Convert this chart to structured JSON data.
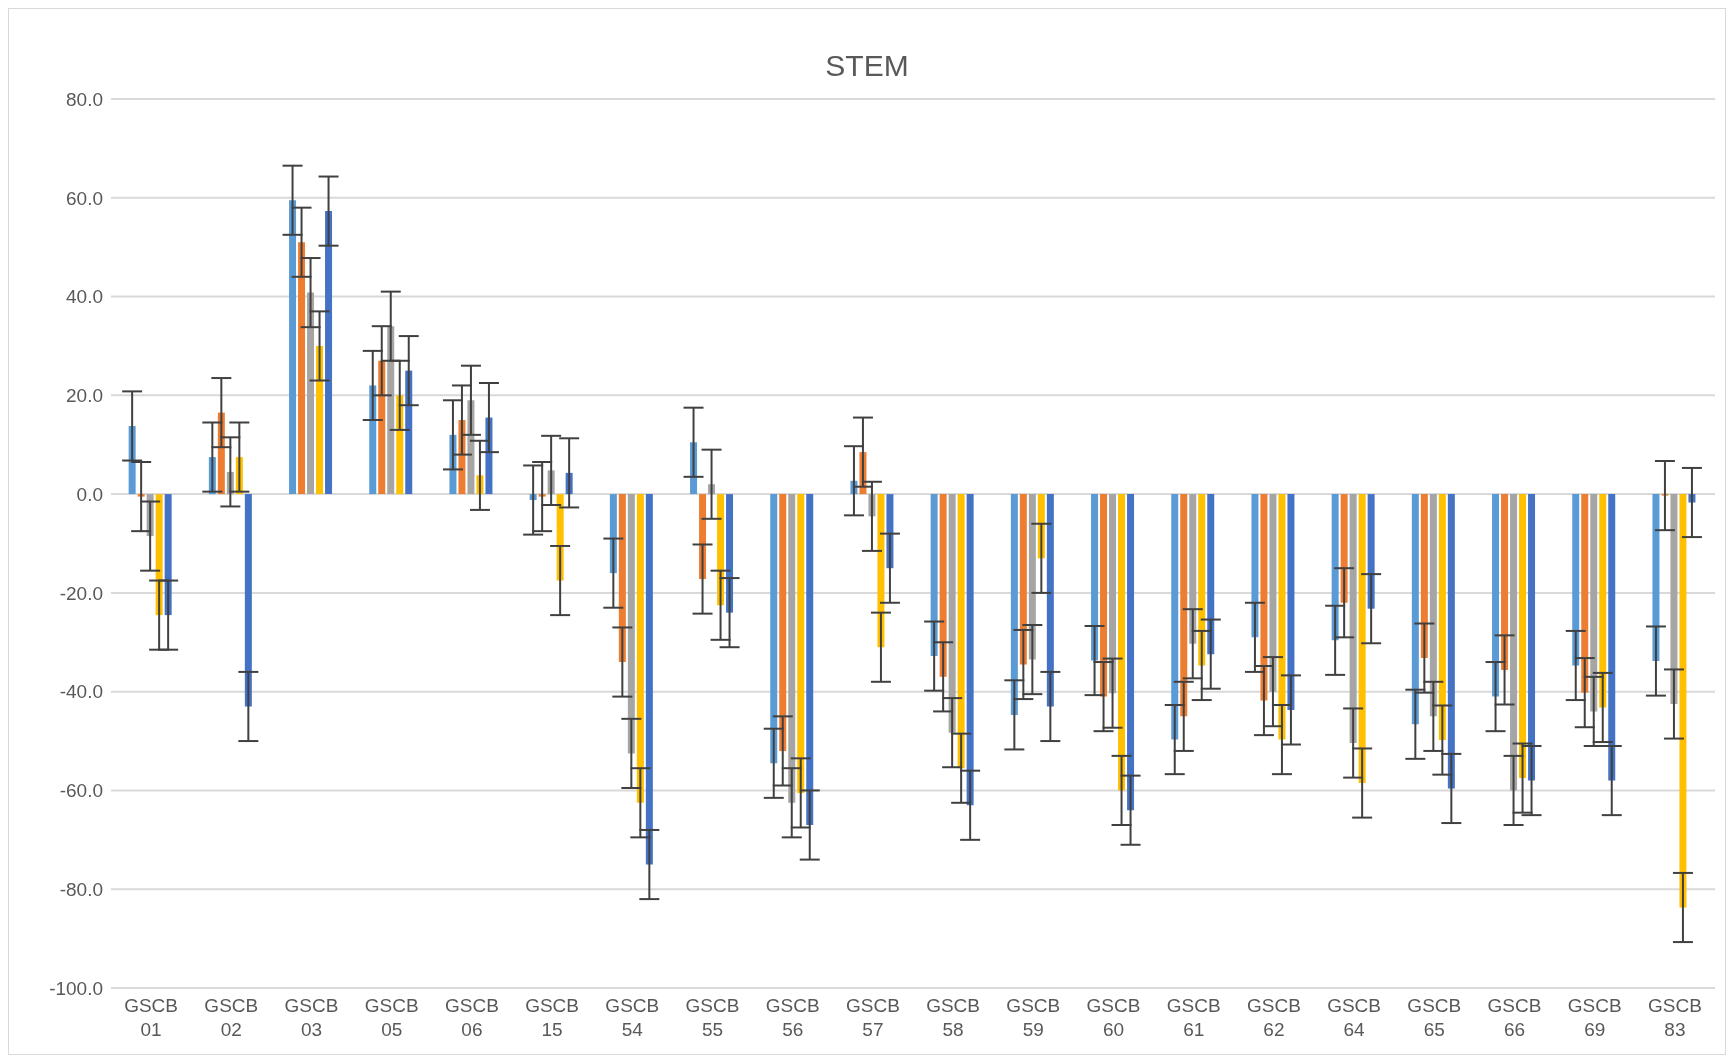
{
  "chart_data": {
    "type": "bar",
    "title": "STEM",
    "categories": [
      "GSCB 01",
      "GSCB 02",
      "GSCB 03",
      "GSCB 05",
      "GSCB 06",
      "GSCB 15",
      "GSCB 54",
      "GSCB 55",
      "GSCB 56",
      "GSCB 57",
      "GSCB 58",
      "GSCB 59",
      "GSCB 60",
      "GSCB 61",
      "GSCB 62",
      "GSCB 64",
      "GSCB 65",
      "GSCB 66",
      "GSCB 69",
      "GSCB 83"
    ],
    "series": [
      {
        "color": "#5b9bd5",
        "values": [
          13.8,
          7.5,
          59.5,
          22,
          12,
          -1.2,
          -16,
          10.5,
          -54.5,
          2.7,
          -32.8,
          -44.7,
          -33.7,
          -49.7,
          -29,
          -29.6,
          -46.6,
          -41,
          -34.7,
          -33.8
        ],
        "errors": [
          7,
          7,
          7,
          7,
          7,
          7,
          7,
          7,
          7,
          7,
          7,
          7,
          7,
          7,
          7,
          7,
          7,
          7,
          7,
          7
        ]
      },
      {
        "color": "#ed7d31",
        "values": [
          -0.5,
          16.5,
          51,
          27,
          15,
          -0.5,
          -34,
          -17.2,
          -52,
          8.5,
          -37,
          -34.5,
          -41,
          -45,
          -41.8,
          -22,
          -33.2,
          -35.6,
          -40.2,
          -0.3
        ],
        "errors": [
          7,
          7,
          7,
          7,
          7,
          7,
          7,
          7,
          7,
          7,
          7,
          7,
          7,
          7,
          7,
          7,
          7,
          7,
          7,
          7
        ]
      },
      {
        "color": "#a5a5a5",
        "values": [
          -8.5,
          4.5,
          40.8,
          34,
          19,
          4.8,
          -52.5,
          2,
          -62.5,
          -4.5,
          -48.3,
          -33.5,
          -40.3,
          -30.3,
          -40,
          -50.4,
          -45,
          -60,
          -44,
          -42.5
        ],
        "errors": [
          7,
          7,
          7,
          7,
          7,
          7,
          7,
          7,
          7,
          7,
          7,
          7,
          7,
          7,
          7,
          7,
          7,
          7,
          7,
          7
        ]
      },
      {
        "color": "#ffc000",
        "values": [
          -24.5,
          7.5,
          30,
          20,
          3.8,
          -17.5,
          -62.5,
          -22.5,
          -60.5,
          -31,
          -55.5,
          -13,
          -60,
          -34.7,
          -49.7,
          -58.5,
          -49.8,
          -57.5,
          -43.2,
          -83.7
        ],
        "errors": [
          7,
          7,
          7,
          7,
          7,
          7,
          7,
          7,
          7,
          7,
          7,
          7,
          7,
          7,
          7,
          7,
          7,
          7,
          7,
          7
        ]
      },
      {
        "color": "#4472c4",
        "values": [
          -24.5,
          -43,
          57.3,
          25,
          15.5,
          4.3,
          -75,
          -24,
          -67,
          -15,
          -63,
          -43,
          -64,
          -32.4,
          -43.7,
          -23.2,
          -59.6,
          -58,
          -58,
          -1.7
        ],
        "errors": [
          7,
          7,
          7,
          7,
          7,
          7,
          7,
          7,
          7,
          7,
          7,
          7,
          7,
          7,
          7,
          7,
          7,
          7,
          7,
          7
        ]
      }
    ],
    "ylim": [
      -100,
      80
    ],
    "yticks": [
      {
        "value": -100,
        "label": "-100.0"
      },
      {
        "value": -80,
        "label": "-80.0"
      },
      {
        "value": -60,
        "label": "-60.0"
      },
      {
        "value": -40,
        "label": "-40.0"
      },
      {
        "value": -20,
        "label": "-20.0"
      },
      {
        "value": 0,
        "label": "0.0"
      },
      {
        "value": 20,
        "label": "20.0"
      },
      {
        "value": 40,
        "label": "40.0"
      },
      {
        "value": 60,
        "label": "60.0"
      },
      {
        "value": 80,
        "label": "80.0"
      }
    ],
    "grid": "y",
    "legend": false
  }
}
